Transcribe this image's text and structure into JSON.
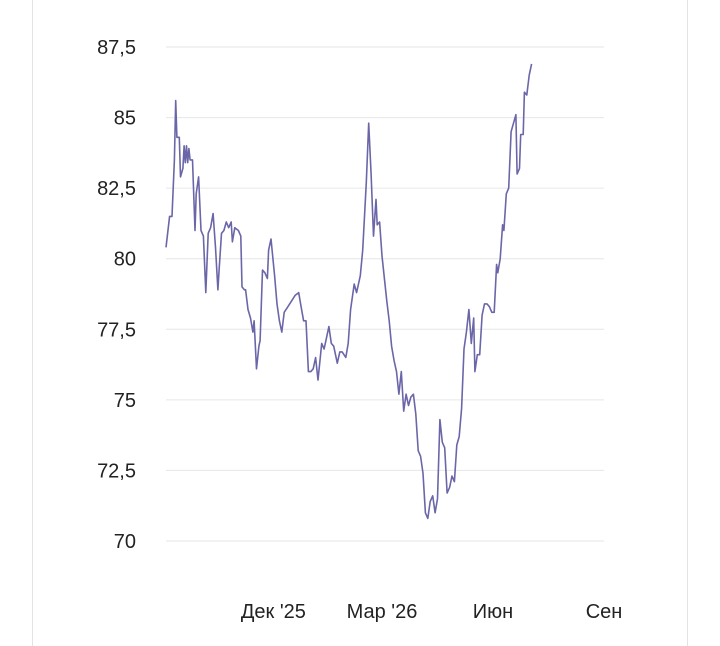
{
  "chart_data": {
    "type": "line",
    "title": "",
    "xlabel": "",
    "ylabel": "",
    "y_ticks": [
      70,
      72.5,
      75,
      77.5,
      80,
      82.5,
      85,
      87.5
    ],
    "y_tick_labels": [
      "70",
      "72,5",
      "75",
      "77,5",
      "80",
      "82,5",
      "85",
      "87,5"
    ],
    "ylim": [
      70,
      87.5
    ],
    "x_ticks": [
      {
        "x": "2025-12-01",
        "label": "Дек '25"
      },
      {
        "x": "2026-03-01",
        "label": "Мар '26"
      },
      {
        "x": "2026-06-01",
        "label": "Июн"
      },
      {
        "x": "2026-09-01",
        "label": "Сен"
      }
    ],
    "xlim": [
      "2025-09-03",
      "2026-09-01"
    ],
    "grid": "horizontal",
    "series": [
      {
        "color": "#6b66a8",
        "points": [
          [
            "2025-09-03",
            80.4
          ],
          [
            "2025-09-06",
            81.5
          ],
          [
            "2025-09-08",
            81.5
          ],
          [
            "2025-09-10",
            83.5
          ],
          [
            "2025-09-11",
            85.6
          ],
          [
            "2025-09-12",
            84.3
          ],
          [
            "2025-09-14",
            84.3
          ],
          [
            "2025-09-15",
            82.9
          ],
          [
            "2025-09-17",
            83.2
          ],
          [
            "2025-09-18",
            84.0
          ],
          [
            "2025-09-19",
            83.4
          ],
          [
            "2025-09-20",
            84.0
          ],
          [
            "2025-09-21",
            83.4
          ],
          [
            "2025-09-22",
            83.9
          ],
          [
            "2025-09-23",
            83.5
          ],
          [
            "2025-09-25",
            83.5
          ],
          [
            "2025-09-27",
            81.0
          ],
          [
            "2025-09-28",
            82.3
          ],
          [
            "2025-09-30",
            82.9
          ],
          [
            "2025-10-02",
            81.0
          ],
          [
            "2025-10-04",
            80.8
          ],
          [
            "2025-10-06",
            78.8
          ],
          [
            "2025-10-08",
            80.9
          ],
          [
            "2025-10-10",
            81.1
          ],
          [
            "2025-10-12",
            81.6
          ],
          [
            "2025-10-14",
            80.4
          ],
          [
            "2025-10-16",
            78.9
          ],
          [
            "2025-10-17",
            79.6
          ],
          [
            "2025-10-19",
            80.9
          ],
          [
            "2025-10-21",
            81.0
          ],
          [
            "2025-10-23",
            81.3
          ],
          [
            "2025-10-25",
            81.1
          ],
          [
            "2025-10-27",
            81.3
          ],
          [
            "2025-10-28",
            80.6
          ],
          [
            "2025-10-30",
            81.1
          ],
          [
            "2025-11-02",
            81.0
          ],
          [
            "2025-11-04",
            80.8
          ],
          [
            "2025-11-05",
            79.0
          ],
          [
            "2025-11-07",
            78.9
          ],
          [
            "2025-11-08",
            78.9
          ],
          [
            "2025-11-10",
            78.2
          ],
          [
            "2025-11-12",
            77.9
          ],
          [
            "2025-11-14",
            77.4
          ],
          [
            "2025-11-15",
            77.8
          ],
          [
            "2025-11-17",
            76.1
          ],
          [
            "2025-11-19",
            76.9
          ],
          [
            "2025-11-20",
            77.1
          ],
          [
            "2025-11-22",
            79.6
          ],
          [
            "2025-11-24",
            79.5
          ],
          [
            "2025-11-26",
            79.3
          ],
          [
            "2025-11-27",
            80.3
          ],
          [
            "2025-11-29",
            80.7
          ],
          [
            "2025-12-02",
            79.4
          ],
          [
            "2025-12-04",
            78.4
          ],
          [
            "2025-12-06",
            77.8
          ],
          [
            "2025-12-08",
            77.4
          ],
          [
            "2025-12-10",
            78.1
          ],
          [
            "2025-12-13",
            78.3
          ],
          [
            "2025-12-16",
            78.5
          ],
          [
            "2025-12-19",
            78.7
          ],
          [
            "2025-12-22",
            78.8
          ],
          [
            "2025-12-24",
            78.3
          ],
          [
            "2025-12-26",
            77.8
          ],
          [
            "2025-12-28",
            77.8
          ],
          [
            "2025-12-30",
            76.0
          ],
          [
            "2026-01-01",
            76.0
          ],
          [
            "2026-01-03",
            76.1
          ],
          [
            "2026-01-05",
            76.5
          ],
          [
            "2026-01-07",
            75.7
          ],
          [
            "2026-01-10",
            77.0
          ],
          [
            "2026-01-12",
            76.8
          ],
          [
            "2026-01-14",
            77.2
          ],
          [
            "2026-01-16",
            77.6
          ],
          [
            "2026-01-18",
            77.0
          ],
          [
            "2026-01-20",
            76.9
          ],
          [
            "2026-01-23",
            76.3
          ],
          [
            "2026-01-25",
            76.7
          ],
          [
            "2026-01-27",
            76.7
          ],
          [
            "2026-01-30",
            76.5
          ],
          [
            "2026-02-01",
            77.0
          ],
          [
            "2026-02-03",
            78.2
          ],
          [
            "2026-02-06",
            79.1
          ],
          [
            "2026-02-08",
            78.8
          ],
          [
            "2026-02-11",
            79.4
          ],
          [
            "2026-02-13",
            80.3
          ],
          [
            "2026-02-16",
            82.7
          ],
          [
            "2026-02-18",
            84.8
          ],
          [
            "2026-02-20",
            83.0
          ],
          [
            "2026-02-22",
            80.8
          ],
          [
            "2026-02-24",
            82.1
          ],
          [
            "2026-02-25",
            81.2
          ],
          [
            "2026-02-27",
            81.3
          ],
          [
            "2026-03-01",
            80.1
          ],
          [
            "2026-03-03",
            79.3
          ],
          [
            "2026-03-05",
            78.5
          ],
          [
            "2026-03-07",
            77.8
          ],
          [
            "2026-03-09",
            76.9
          ],
          [
            "2026-03-11",
            76.4
          ],
          [
            "2026-03-13",
            76.0
          ],
          [
            "2026-03-15",
            75.2
          ],
          [
            "2026-03-17",
            76.0
          ],
          [
            "2026-03-19",
            74.6
          ],
          [
            "2026-03-21",
            75.2
          ],
          [
            "2026-03-23",
            74.8
          ],
          [
            "2026-03-25",
            75.1
          ],
          [
            "2026-03-27",
            75.2
          ],
          [
            "2026-03-29",
            74.5
          ],
          [
            "2026-03-31",
            73.2
          ],
          [
            "2026-04-02",
            73.0
          ],
          [
            "2026-04-04",
            72.4
          ],
          [
            "2026-04-06",
            71.0
          ],
          [
            "2026-04-08",
            70.8
          ],
          [
            "2026-04-10",
            71.4
          ],
          [
            "2026-04-12",
            71.6
          ],
          [
            "2026-04-14",
            71.0
          ],
          [
            "2026-04-16",
            71.5
          ],
          [
            "2026-04-18",
            74.3
          ],
          [
            "2026-04-20",
            73.5
          ],
          [
            "2026-04-22",
            73.3
          ],
          [
            "2026-04-24",
            71.7
          ],
          [
            "2026-04-26",
            71.9
          ],
          [
            "2026-04-28",
            72.3
          ],
          [
            "2026-04-30",
            72.1
          ],
          [
            "2026-05-02",
            73.4
          ],
          [
            "2026-05-04",
            73.7
          ],
          [
            "2026-05-06",
            74.7
          ],
          [
            "2026-05-08",
            76.8
          ],
          [
            "2026-05-10",
            77.4
          ],
          [
            "2026-05-12",
            78.2
          ],
          [
            "2026-05-14",
            77.0
          ],
          [
            "2026-05-16",
            77.9
          ],
          [
            "2026-05-17",
            76.0
          ],
          [
            "2026-05-19",
            76.6
          ],
          [
            "2026-05-21",
            76.6
          ],
          [
            "2026-05-23",
            78.0
          ],
          [
            "2026-05-25",
            78.4
          ],
          [
            "2026-05-27",
            78.4
          ],
          [
            "2026-05-29",
            78.3
          ],
          [
            "2026-05-31",
            78.1
          ],
          [
            "2026-06-02",
            78.1
          ],
          [
            "2026-06-04",
            79.8
          ],
          [
            "2026-06-05",
            79.5
          ],
          [
            "2026-06-07",
            80.0
          ],
          [
            "2026-06-09",
            81.2
          ],
          [
            "2026-06-10",
            81.0
          ],
          [
            "2026-06-12",
            82.3
          ],
          [
            "2026-06-14",
            82.5
          ],
          [
            "2026-06-16",
            84.5
          ],
          [
            "2026-06-18",
            84.8
          ],
          [
            "2026-06-20",
            85.1
          ],
          [
            "2026-06-21",
            83.0
          ],
          [
            "2026-06-23",
            83.2
          ],
          [
            "2026-06-24",
            84.4
          ],
          [
            "2026-06-26",
            84.4
          ],
          [
            "2026-06-27",
            85.9
          ],
          [
            "2026-06-29",
            85.8
          ],
          [
            "2026-07-01",
            86.5
          ],
          [
            "2026-07-03",
            86.9
          ]
        ]
      }
    ]
  }
}
